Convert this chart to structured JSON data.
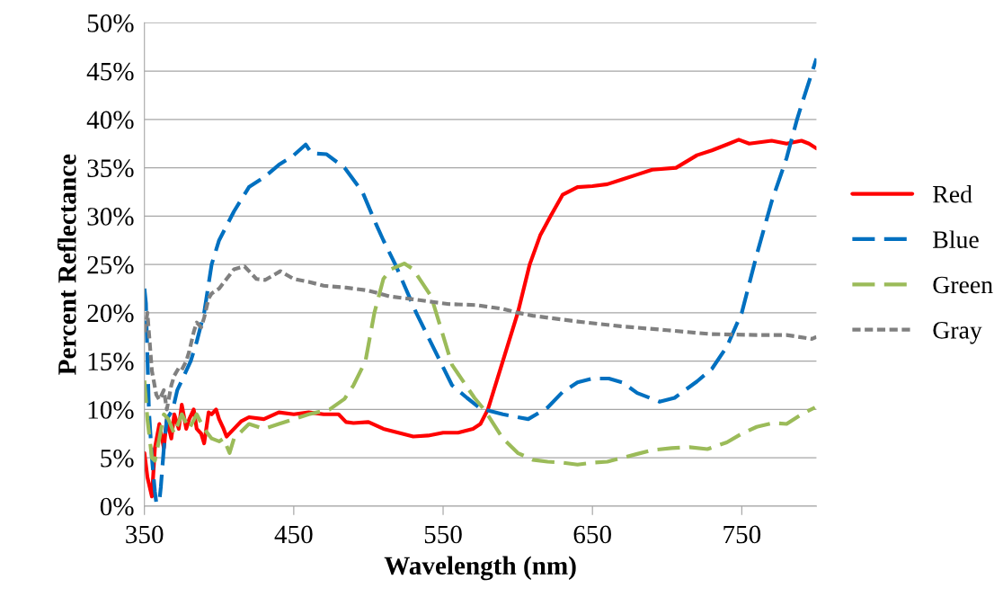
{
  "chart_data": {
    "type": "line",
    "xlabel": "Wavelength (nm)",
    "ylabel": "Percent Reflectance",
    "xlim": [
      350,
      800
    ],
    "xticks": [
      350,
      450,
      550,
      650,
      750
    ],
    "ylim": [
      0,
      50
    ],
    "yticks": [
      {
        "value": 0,
        "label": "0%"
      },
      {
        "value": 5,
        "label": "5%"
      },
      {
        "value": 10,
        "label": "10%"
      },
      {
        "value": 15,
        "label": "15%"
      },
      {
        "value": 20,
        "label": "20%"
      },
      {
        "value": 25,
        "label": "25%"
      },
      {
        "value": 30,
        "label": "30%"
      },
      {
        "value": 35,
        "label": "35%"
      },
      {
        "value": 40,
        "label": "40%"
      },
      {
        "value": 45,
        "label": "45%"
      },
      {
        "value": 50,
        "label": "50%"
      }
    ],
    "grid": "y",
    "legend": "right",
    "marker": "none",
    "series": [
      {
        "name": "Red",
        "color": "#ff0000",
        "line_style": "solid",
        "x": [
          350,
          352,
          355,
          357,
          360,
          363,
          365,
          368,
          370,
          373,
          375,
          378,
          380,
          383,
          385,
          388,
          390,
          393,
          395,
          398,
          400,
          403,
          405,
          410,
          415,
          420,
          430,
          440,
          450,
          460,
          470,
          480,
          485,
          490,
          500,
          510,
          520,
          530,
          540,
          550,
          560,
          570,
          575,
          580,
          590,
          600,
          608,
          615,
          622,
          630,
          640,
          650,
          660,
          670,
          680,
          690,
          706,
          720,
          730,
          740,
          748,
          755,
          770,
          780,
          790,
          795,
          800
        ],
        "values": [
          5.5,
          3,
          1,
          6,
          8.5,
          6,
          9,
          7,
          9.5,
          8,
          10.5,
          8,
          9,
          10,
          8,
          7.5,
          6.5,
          9.7,
          9.5,
          10,
          9,
          8,
          7.2,
          8,
          8.8,
          9.2,
          9,
          9.7,
          9.5,
          9.7,
          9.5,
          9.5,
          8.7,
          8.6,
          8.7,
          8,
          7.6,
          7.2,
          7.3,
          7.6,
          7.6,
          8,
          8.5,
          10,
          15,
          20,
          25,
          28,
          30,
          32.2,
          33,
          33.1,
          33.3,
          33.8,
          34.3,
          34.8,
          35,
          36.3,
          36.8,
          37.4,
          37.9,
          37.5,
          37.8,
          37.5,
          37.8,
          37.5,
          37
        ]
      },
      {
        "name": "Blue",
        "color": "#0070c0",
        "line_style": "dashed",
        "x": [
          350,
          351,
          353,
          355,
          357,
          358,
          360,
          361,
          363,
          365,
          369,
          372,
          378,
          381,
          385,
          390,
          395,
          400,
          410,
          420,
          430,
          440,
          450,
          458,
          462,
          472,
          484,
          496,
          505,
          510,
          518,
          525,
          532,
          540,
          548,
          556,
          566,
          575,
          580,
          590,
          607,
          620,
          630,
          640,
          650,
          661,
          670,
          680,
          695,
          705,
          720,
          730,
          740,
          750,
          760,
          770,
          780,
          787,
          790,
          800
        ],
        "values": [
          22.5,
          21,
          10,
          5,
          1.5,
          0.3,
          0.5,
          2,
          6,
          9,
          10,
          12,
          14,
          15,
          17,
          20,
          25,
          27.5,
          30.5,
          33,
          34,
          35.3,
          36.3,
          37.4,
          36.5,
          36.4,
          35,
          32.5,
          29.2,
          27.5,
          25,
          22.5,
          20,
          17.5,
          15,
          12.5,
          11.2,
          10.1,
          9.9,
          9.5,
          9,
          10.2,
          11.8,
          12.8,
          13.2,
          13.2,
          12.8,
          11.7,
          10.8,
          11.2,
          12.9,
          14.2,
          16.5,
          20,
          26,
          31.5,
          36,
          40,
          41.5,
          46.3
        ]
      },
      {
        "name": "Green",
        "color": "#9bbb59",
        "line_style": "dashed",
        "x": [
          350,
          352,
          355,
          357,
          360,
          363,
          366,
          370,
          375,
          380,
          385,
          390,
          395,
          400,
          403,
          407,
          410,
          420,
          430,
          440,
          450,
          460,
          474,
          484,
          490,
          498,
          504,
          510,
          515,
          524,
          530,
          542,
          556,
          571,
          578,
          590,
          600,
          610,
          620,
          630,
          640,
          650,
          660,
          670,
          680,
          690,
          703,
          715,
          727,
          740,
          750,
          760,
          771,
          780,
          790,
          799
        ],
        "values": [
          13,
          9,
          5,
          4.7,
          7,
          9.5,
          9,
          7.5,
          9.5,
          8,
          9.5,
          8,
          7,
          6.7,
          7,
          5.5,
          7,
          8.5,
          8,
          8.5,
          9,
          9.5,
          10,
          11.1,
          12.5,
          15,
          20,
          23.5,
          24.5,
          25.1,
          24.5,
          21.7,
          14.6,
          11.2,
          9.9,
          7,
          5.5,
          4.8,
          4.6,
          4.5,
          4.3,
          4.5,
          4.6,
          5,
          5.4,
          5.8,
          6,
          6.1,
          5.9,
          6.6,
          7.5,
          8.2,
          8.6,
          8.5,
          9.5,
          10.2
        ]
      },
      {
        "name": "Gray",
        "color": "#808080",
        "line_style": "dotted",
        "x": [
          350,
          352,
          355,
          358,
          360,
          363,
          365,
          368,
          370,
          373,
          375,
          378,
          380,
          383,
          385,
          388,
          390,
          393,
          395,
          400,
          405,
          410,
          417,
          425,
          431,
          441,
          450,
          460,
          470,
          485,
          500,
          514,
          530,
          544,
          554,
          572,
          590,
          600,
          610,
          640,
          669,
          700,
          729,
          760,
          780,
          797,
          800
        ],
        "values": [
          18,
          20,
          14,
          11.5,
          11,
          12,
          10,
          12.5,
          13.5,
          14.3,
          14.1,
          15,
          16,
          18,
          19,
          18.5,
          19.5,
          21.5,
          22,
          22.5,
          23.5,
          24.5,
          24.8,
          23.5,
          23.4,
          24.3,
          23.5,
          23.2,
          22.8,
          22.6,
          22.3,
          21.7,
          21.4,
          21.1,
          20.9,
          20.8,
          20.4,
          20,
          19.7,
          19.1,
          18.6,
          18.2,
          17.8,
          17.7,
          17.7,
          17.3,
          17.5
        ]
      }
    ]
  }
}
